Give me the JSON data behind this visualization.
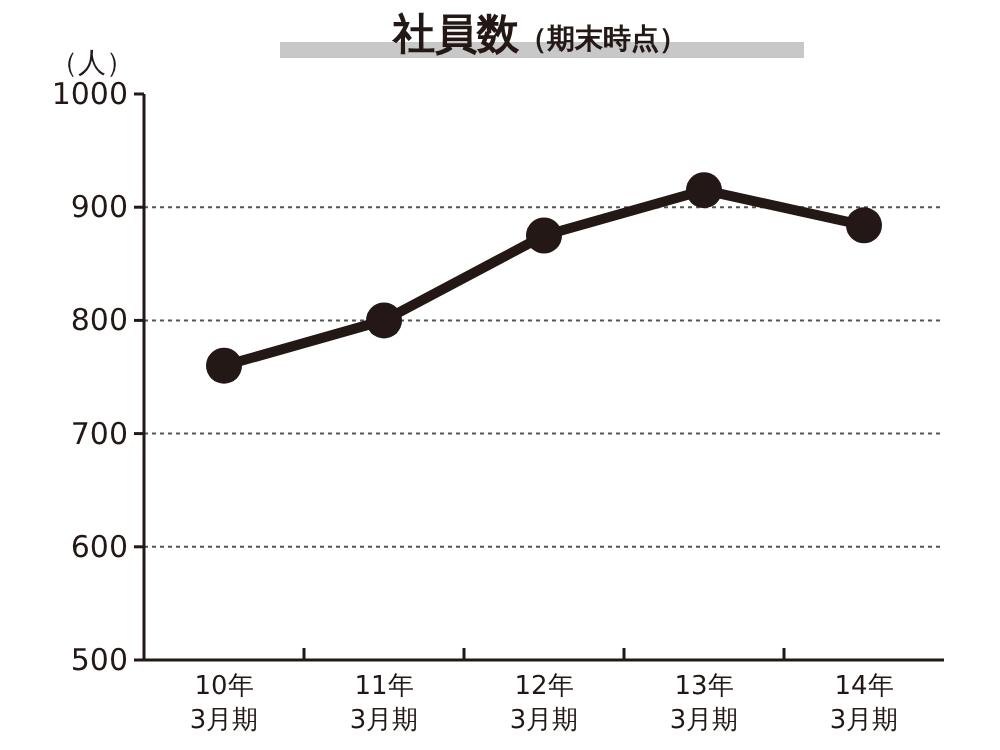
{
  "chart_data": {
    "type": "line",
    "title": "社員数",
    "subtitle": "（期末時点）",
    "ylabel": "（人）",
    "categories": [
      "10年 3月期",
      "11年 3月期",
      "12年 3月期",
      "13年 3月期",
      "14年 3月期"
    ],
    "series": [
      {
        "color": "#231815",
        "values": [
          760,
          800,
          875,
          915,
          884
        ]
      }
    ],
    "ylim": [
      500,
      1000
    ],
    "yticks": [
      500,
      600,
      700,
      800,
      900,
      1000
    ],
    "grid": "y",
    "marker": "circle"
  }
}
